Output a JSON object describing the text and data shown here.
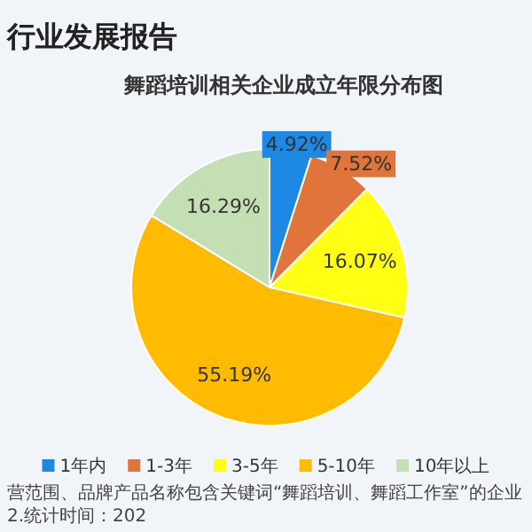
{
  "chart_data": {
    "type": "pie",
    "title": "舞蹈培训相关企业成立年限分布图",
    "categories": [
      "1年内",
      "1-3年",
      "3-5年",
      "5-10年",
      "10年以上"
    ],
    "values": [
      4.92,
      7.52,
      16.07,
      55.19,
      16.29
    ],
    "value_labels": [
      "4.92%",
      "7.52%",
      "16.07%",
      "55.19%",
      "16.29%"
    ],
    "colors": [
      "#1e88e5",
      "#e0743a",
      "#ffff14",
      "#ffbb00",
      "#c5dfb4"
    ],
    "legend": "bottom",
    "annotations": [
      "行业发展报告",
      "营范围、品牌产品名称包含关键词“舞蹈培训、舞蹈工作室”的企业 2.统计时间：202"
    ]
  }
}
